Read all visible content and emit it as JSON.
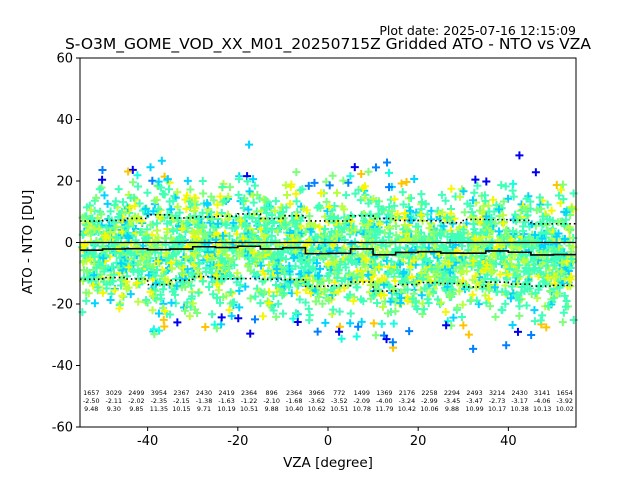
{
  "plot_date": "Plot date: 2025-07-16 12:15:09",
  "chart_data": {
    "type": "scatter",
    "title": "S-O3M_GOME_VOD_XX_M01_20250715Z Gridded ATO - NTO vs VZA",
    "xlabel": "VZA [degree]",
    "ylabel": "ATO - NTO [DU]",
    "xlim": [
      -55,
      55
    ],
    "ylim": [
      -60,
      60
    ],
    "xticks": [
      -40,
      -20,
      0,
      20,
      40
    ],
    "yticks": [
      -60,
      -40,
      -20,
      0,
      20,
      40,
      60
    ],
    "marker": "+",
    "colormap": "jet",
    "grid": false,
    "bins": [
      {
        "x": -52.5,
        "count": 1657,
        "mean": -2.5,
        "std": 9.48
      },
      {
        "x": -47.5,
        "count": 3029,
        "mean": -2.11,
        "std": 9.3
      },
      {
        "x": -42.5,
        "count": 2499,
        "mean": -2.02,
        "std": 9.85
      },
      {
        "x": -37.5,
        "count": 3954,
        "mean": -2.35,
        "std": 11.35
      },
      {
        "x": -32.5,
        "count": 2367,
        "mean": -2.15,
        "std": 10.15
      },
      {
        "x": -27.5,
        "count": 2430,
        "mean": -1.38,
        "std": 9.71
      },
      {
        "x": -22.5,
        "count": 2419,
        "mean": -1.63,
        "std": 10.19
      },
      {
        "x": -17.5,
        "count": 2364,
        "mean": -1.22,
        "std": 10.51
      },
      {
        "x": -12.5,
        "count": 896,
        "mean": -2.1,
        "std": 9.88
      },
      {
        "x": -7.5,
        "count": 2364,
        "mean": -1.68,
        "std": 10.4
      },
      {
        "x": -2.5,
        "count": 3966,
        "mean": -3.62,
        "std": 10.62
      },
      {
        "x": 2.5,
        "count": 772,
        "mean": -3.52,
        "std": 10.51
      },
      {
        "x": 7.5,
        "count": 1499,
        "mean": -2.09,
        "std": 10.78
      },
      {
        "x": 12.5,
        "count": 1369,
        "mean": -4.0,
        "std": 11.79
      },
      {
        "x": 17.5,
        "count": 2176,
        "mean": -3.24,
        "std": 10.42
      },
      {
        "x": 22.5,
        "count": 2258,
        "mean": -2.99,
        "std": 10.06
      },
      {
        "x": 27.5,
        "count": 2294,
        "mean": -3.45,
        "std": 9.88
      },
      {
        "x": 32.5,
        "count": 2493,
        "mean": -3.47,
        "std": 10.99
      },
      {
        "x": 37.5,
        "count": 3214,
        "mean": -2.73,
        "std": 10.17
      },
      {
        "x": 42.5,
        "count": 2430,
        "mean": -3.17,
        "std": 10.38
      },
      {
        "x": 47.5,
        "count": 3141,
        "mean": -4.06,
        "std": 10.13
      },
      {
        "x": 52.5,
        "count": 1654,
        "mean": -3.92,
        "std": 10.02
      }
    ]
  }
}
